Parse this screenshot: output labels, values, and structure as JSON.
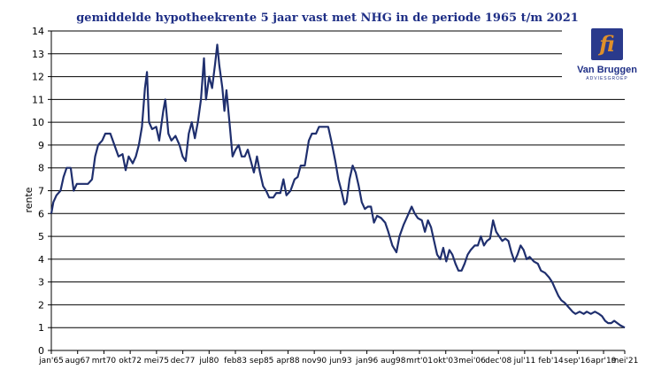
{
  "logo": {
    "monogram": "fi",
    "name": "Van Bruggen",
    "subtitle": "ADVIESGROEP",
    "colors": {
      "box": "#2a3a8c",
      "accent": "#e0902a"
    }
  },
  "chart_data": {
    "type": "line",
    "title": "gemiddelde hypotheekrente 5 jaar vast met NHG in de periode 1965 t/m 2021",
    "xlabel": "",
    "ylabel": "rente",
    "ylim": [
      0,
      14
    ],
    "yticks": [
      0,
      1,
      2,
      3,
      4,
      5,
      6,
      7,
      8,
      9,
      10,
      11,
      12,
      13,
      14
    ],
    "xlim": [
      1965.0,
      2021.333
    ],
    "xticks": [
      {
        "label": "jan'65",
        "x": 1965.0
      },
      {
        "label": "aug67",
        "x": 1967.583
      },
      {
        "label": "mrt70",
        "x": 1970.167
      },
      {
        "label": "okt72",
        "x": 1972.75
      },
      {
        "label": "mei75",
        "x": 1975.333
      },
      {
        "label": "dec77",
        "x": 1977.917
      },
      {
        "label": "jul80",
        "x": 1980.5
      },
      {
        "label": "feb83",
        "x": 1983.083
      },
      {
        "label": "sep85",
        "x": 1985.667
      },
      {
        "label": "apr88",
        "x": 1988.25
      },
      {
        "label": "nov90",
        "x": 1990.833
      },
      {
        "label": "jun93",
        "x": 1993.417
      },
      {
        "label": "jan96",
        "x": 1996.0
      },
      {
        "label": "aug98",
        "x": 1998.583
      },
      {
        "label": "mrt'01",
        "x": 2001.167
      },
      {
        "label": "okt'03",
        "x": 2003.75
      },
      {
        "label": "mei'06",
        "x": 2006.333
      },
      {
        "label": "dec'08",
        "x": 2008.917
      },
      {
        "label": "jul'11",
        "x": 2011.5
      },
      {
        "label": "feb'14",
        "x": 2014.083
      },
      {
        "label": "sep'16",
        "x": 2016.667
      },
      {
        "label": "apr'19",
        "x": 2019.25
      },
      {
        "label": "mei'21",
        "x": 2021.333
      }
    ],
    "grid": "horizontal",
    "line_color": "#1f2f6e",
    "series": [
      {
        "points": [
          [
            1965.0,
            6.0
          ],
          [
            1965.2,
            6.5
          ],
          [
            1965.5,
            6.8
          ],
          [
            1965.9,
            7.0
          ],
          [
            1966.2,
            7.6
          ],
          [
            1966.5,
            8.0
          ],
          [
            1966.9,
            8.0
          ],
          [
            1967.2,
            7.0
          ],
          [
            1967.5,
            7.3
          ],
          [
            1968.0,
            7.3
          ],
          [
            1968.6,
            7.3
          ],
          [
            1969.0,
            7.5
          ],
          [
            1969.3,
            8.5
          ],
          [
            1969.6,
            9.0
          ],
          [
            1970.0,
            9.2
          ],
          [
            1970.3,
            9.5
          ],
          [
            1970.8,
            9.5
          ],
          [
            1971.2,
            9.0
          ],
          [
            1971.6,
            8.5
          ],
          [
            1972.0,
            8.6
          ],
          [
            1972.3,
            7.9
          ],
          [
            1972.6,
            8.5
          ],
          [
            1973.0,
            8.2
          ],
          [
            1973.3,
            8.5
          ],
          [
            1973.6,
            9.0
          ],
          [
            1973.9,
            9.8
          ],
          [
            1974.2,
            11.5
          ],
          [
            1974.4,
            12.2
          ],
          [
            1974.6,
            10.0
          ],
          [
            1974.9,
            9.7
          ],
          [
            1975.3,
            9.8
          ],
          [
            1975.6,
            9.2
          ],
          [
            1976.0,
            10.5
          ],
          [
            1976.2,
            11.0
          ],
          [
            1976.5,
            9.5
          ],
          [
            1976.8,
            9.2
          ],
          [
            1977.2,
            9.4
          ],
          [
            1977.6,
            9.0
          ],
          [
            1977.9,
            8.5
          ],
          [
            1978.2,
            8.3
          ],
          [
            1978.5,
            9.5
          ],
          [
            1978.8,
            10.0
          ],
          [
            1979.1,
            9.3
          ],
          [
            1979.4,
            10.0
          ],
          [
            1979.7,
            11.0
          ],
          [
            1980.0,
            12.8
          ],
          [
            1980.2,
            11.0
          ],
          [
            1980.5,
            12.0
          ],
          [
            1980.8,
            11.5
          ],
          [
            1981.1,
            12.6
          ],
          [
            1981.3,
            13.4
          ],
          [
            1981.5,
            12.5
          ],
          [
            1981.8,
            11.5
          ],
          [
            1982.0,
            10.5
          ],
          [
            1982.2,
            11.4
          ],
          [
            1982.5,
            10.0
          ],
          [
            1982.8,
            8.5
          ],
          [
            1983.1,
            8.8
          ],
          [
            1983.4,
            9.0
          ],
          [
            1983.7,
            8.5
          ],
          [
            1984.0,
            8.5
          ],
          [
            1984.3,
            8.8
          ],
          [
            1984.6,
            8.3
          ],
          [
            1984.9,
            7.8
          ],
          [
            1985.2,
            8.5
          ],
          [
            1985.5,
            7.8
          ],
          [
            1985.8,
            7.2
          ],
          [
            1986.1,
            7.0
          ],
          [
            1986.4,
            6.7
          ],
          [
            1986.8,
            6.7
          ],
          [
            1987.1,
            6.9
          ],
          [
            1987.5,
            6.9
          ],
          [
            1987.8,
            7.5
          ],
          [
            1988.1,
            6.8
          ],
          [
            1988.5,
            7.0
          ],
          [
            1988.9,
            7.5
          ],
          [
            1989.2,
            7.6
          ],
          [
            1989.5,
            8.1
          ],
          [
            1989.9,
            8.1
          ],
          [
            1990.3,
            9.2
          ],
          [
            1990.6,
            9.5
          ],
          [
            1991.0,
            9.5
          ],
          [
            1991.3,
            9.8
          ],
          [
            1991.8,
            9.8
          ],
          [
            1992.2,
            9.8
          ],
          [
            1992.5,
            9.2
          ],
          [
            1992.9,
            8.3
          ],
          [
            1993.2,
            7.5
          ],
          [
            1993.5,
            7.0
          ],
          [
            1993.8,
            6.4
          ],
          [
            1994.0,
            6.5
          ],
          [
            1994.3,
            7.5
          ],
          [
            1994.6,
            8.1
          ],
          [
            1994.9,
            7.8
          ],
          [
            1995.2,
            7.2
          ],
          [
            1995.5,
            6.5
          ],
          [
            1995.8,
            6.2
          ],
          [
            1996.1,
            6.3
          ],
          [
            1996.4,
            6.3
          ],
          [
            1996.7,
            5.6
          ],
          [
            1997.0,
            5.9
          ],
          [
            1997.4,
            5.8
          ],
          [
            1997.8,
            5.6
          ],
          [
            1998.1,
            5.2
          ],
          [
            1998.5,
            4.6
          ],
          [
            1998.9,
            4.3
          ],
          [
            1999.2,
            5.0
          ],
          [
            1999.6,
            5.5
          ],
          [
            2000.0,
            5.9
          ],
          [
            2000.4,
            6.3
          ],
          [
            2000.7,
            6.0
          ],
          [
            2001.0,
            5.8
          ],
          [
            2001.4,
            5.7
          ],
          [
            2001.7,
            5.2
          ],
          [
            2002.0,
            5.7
          ],
          [
            2002.3,
            5.4
          ],
          [
            2002.6,
            4.8
          ],
          [
            2002.9,
            4.2
          ],
          [
            2003.2,
            4.0
          ],
          [
            2003.5,
            4.5
          ],
          [
            2003.8,
            3.9
          ],
          [
            2004.1,
            4.4
          ],
          [
            2004.4,
            4.2
          ],
          [
            2004.7,
            3.8
          ],
          [
            2005.0,
            3.5
          ],
          [
            2005.3,
            3.5
          ],
          [
            2005.6,
            3.8
          ],
          [
            2005.9,
            4.2
          ],
          [
            2006.2,
            4.4
          ],
          [
            2006.6,
            4.6
          ],
          [
            2006.9,
            4.6
          ],
          [
            2007.2,
            5.0
          ],
          [
            2007.5,
            4.6
          ],
          [
            2007.8,
            4.8
          ],
          [
            2008.1,
            4.9
          ],
          [
            2008.4,
            5.7
          ],
          [
            2008.7,
            5.2
          ],
          [
            2009.0,
            5.0
          ],
          [
            2009.3,
            4.8
          ],
          [
            2009.6,
            4.9
          ],
          [
            2009.9,
            4.8
          ],
          [
            2010.2,
            4.3
          ],
          [
            2010.5,
            3.9
          ],
          [
            2010.8,
            4.2
          ],
          [
            2011.1,
            4.6
          ],
          [
            2011.4,
            4.4
          ],
          [
            2011.7,
            4.0
          ],
          [
            2012.0,
            4.1
          ],
          [
            2012.4,
            3.9
          ],
          [
            2012.8,
            3.8
          ],
          [
            2013.1,
            3.5
          ],
          [
            2013.5,
            3.4
          ],
          [
            2013.9,
            3.2
          ],
          [
            2014.2,
            3.0
          ],
          [
            2014.5,
            2.7
          ],
          [
            2014.8,
            2.4
          ],
          [
            2015.1,
            2.2
          ],
          [
            2015.4,
            2.1
          ],
          [
            2015.8,
            1.9
          ],
          [
            2016.2,
            1.7
          ],
          [
            2016.5,
            1.6
          ],
          [
            2016.9,
            1.7
          ],
          [
            2017.3,
            1.6
          ],
          [
            2017.6,
            1.7
          ],
          [
            2018.0,
            1.6
          ],
          [
            2018.4,
            1.7
          ],
          [
            2018.8,
            1.6
          ],
          [
            2019.1,
            1.5
          ],
          [
            2019.4,
            1.3
          ],
          [
            2019.7,
            1.2
          ],
          [
            2020.0,
            1.2
          ],
          [
            2020.3,
            1.3
          ],
          [
            2020.6,
            1.2
          ],
          [
            2020.9,
            1.1
          ],
          [
            2021.33,
            1.0
          ]
        ]
      }
    ]
  }
}
